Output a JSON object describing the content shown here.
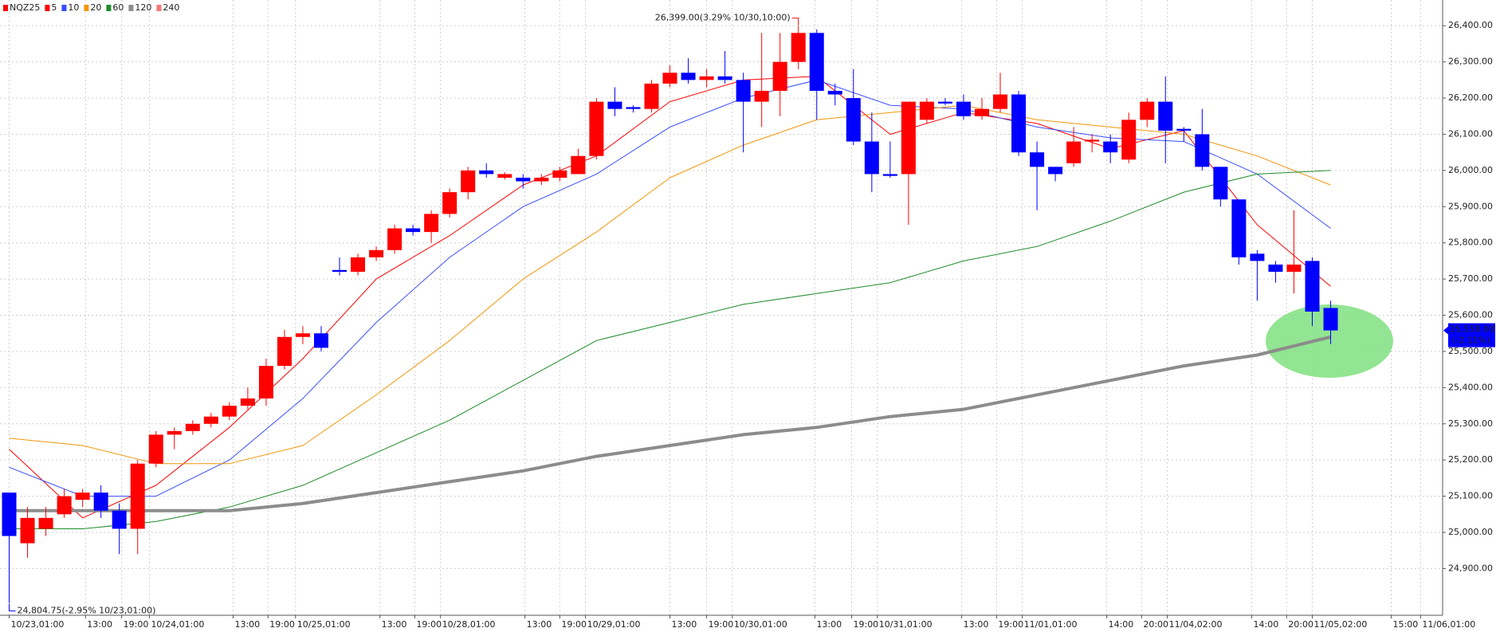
{
  "chart_data": {
    "type": "candlestick",
    "symbol": "NQZ25",
    "symbol_color": "#ff0000",
    "up_color": "#ff0000",
    "down_color": "#0000ff",
    "candles": {
      "open": [
        25110,
        24970,
        25010,
        25050,
        25090,
        25110,
        25060,
        25010,
        25190,
        25270,
        25280,
        25300,
        25320,
        25350,
        25370,
        25460,
        25540,
        25550,
        25725,
        25720,
        25760,
        25780,
        25840,
        25830,
        25880,
        25940,
        26000,
        25980,
        25980,
        25970,
        25980,
        25990,
        26040,
        26190,
        26175,
        26170,
        26240,
        26270,
        26250,
        26260,
        26250,
        26190,
        26220,
        26300,
        26380,
        26220,
        26200,
        26080,
        25990,
        25990,
        26140,
        26190,
        26190,
        26150,
        26170,
        26210,
        26050,
        26010,
        26020,
        26080,
        26080,
        26030,
        26140,
        26190,
        26115,
        26100,
        26010,
        25920,
        25770,
        25740,
        25720,
        25750,
        25620
      ],
      "high": [
        25110,
        25070,
        25070,
        25120,
        25120,
        25130,
        25080,
        25200,
        25280,
        25290,
        25310,
        25330,
        25360,
        25400,
        25480,
        25560,
        25570,
        25570,
        25760,
        25770,
        25790,
        25850,
        25850,
        25890,
        25950,
        26010,
        26020,
        25995,
        25990,
        25990,
        26010,
        26060,
        26200,
        26230,
        26180,
        26250,
        26290,
        26310,
        26280,
        26330,
        26270,
        26380,
        26380,
        26399,
        26390,
        26240,
        26280,
        26160,
        26080,
        26190,
        26200,
        26200,
        26210,
        26200,
        26270,
        26220,
        26080,
        26010,
        26120,
        26100,
        26100,
        26160,
        26200,
        26260,
        26120,
        26170,
        26010,
        25920,
        25780,
        25750,
        25890,
        25760,
        25640
      ],
      "low": [
        24804.75,
        24930,
        24990,
        25040,
        25070,
        25040,
        24940,
        24940,
        25180,
        25230,
        25270,
        25290,
        25310,
        25340,
        25350,
        25450,
        25520,
        25500,
        25710,
        25710,
        25750,
        25770,
        25820,
        25800,
        25870,
        25920,
        25980,
        25975,
        25950,
        25960,
        25970,
        25990,
        26030,
        26150,
        26160,
        26160,
        26230,
        26240,
        26230,
        26240,
        26050,
        26120,
        26150,
        26280,
        26140,
        26180,
        26070,
        25940,
        25980,
        25850,
        26130,
        26180,
        26140,
        26140,
        26160,
        26040,
        25890,
        25970,
        26010,
        26050,
        26020,
        26020,
        26120,
        26020,
        26080,
        26000,
        25900,
        25740,
        25640,
        25690,
        25660,
        25570,
        25520
      ],
      "close": [
        24990,
        25040,
        25040,
        25100,
        25110,
        25060,
        25010,
        25190,
        25270,
        25280,
        25300,
        25320,
        25350,
        25370,
        25460,
        25540,
        25550,
        25510,
        25720,
        25760,
        25780,
        25840,
        25830,
        25880,
        25940,
        26000,
        25990,
        25990,
        25970,
        25980,
        26000,
        26040,
        26190,
        26170,
        26170,
        26240,
        26270,
        26250,
        26260,
        26250,
        26190,
        26220,
        26300,
        26380,
        26220,
        26210,
        26080,
        25990,
        25985,
        26190,
        26190,
        26185,
        26150,
        26170,
        26210,
        26050,
        26010,
        25990,
        26080,
        26085,
        26050,
        26140,
        26190,
        26110,
        26110,
        26010,
        25920,
        25760,
        25750,
        25720,
        25740,
        25610,
        25558
      ]
    },
    "series": [
      {
        "name": "5",
        "color": "#ff0000",
        "width": 1,
        "x": [
          0,
          4,
          8,
          12,
          16,
          20,
          24,
          28,
          32,
          36,
          40,
          44,
          48,
          52,
          56,
          60,
          64,
          68,
          72
        ],
        "values": [
          25230,
          25040,
          25130,
          25290,
          25480,
          25700,
          25820,
          25960,
          26040,
          26190,
          26250,
          26260,
          26100,
          26160,
          26130,
          26060,
          26110,
          25850,
          25680
        ]
      },
      {
        "name": "10",
        "color": "#3a4cff",
        "width": 1,
        "x": [
          0,
          4,
          8,
          12,
          16,
          20,
          24,
          28,
          32,
          36,
          40,
          44,
          48,
          52,
          56,
          60,
          64,
          68,
          72
        ],
        "values": [
          25180,
          25100,
          25100,
          25200,
          25370,
          25580,
          25760,
          25900,
          25990,
          26120,
          26200,
          26250,
          26180,
          26170,
          26120,
          26090,
          26080,
          25990,
          25840
        ]
      },
      {
        "name": "20",
        "color": "#f0960a",
        "width": 1,
        "x": [
          0,
          4,
          8,
          12,
          16,
          20,
          24,
          28,
          32,
          36,
          40,
          44,
          48,
          52,
          56,
          60,
          64,
          68,
          72
        ],
        "values": [
          25260,
          25240,
          25190,
          25190,
          25240,
          25380,
          25530,
          25700,
          25830,
          25980,
          26070,
          26140,
          26160,
          26180,
          26140,
          26120,
          26100,
          26040,
          25960
        ]
      },
      {
        "name": "60",
        "color": "#1e8c2a",
        "width": 1,
        "x": [
          0,
          4,
          8,
          12,
          16,
          20,
          24,
          28,
          32,
          36,
          40,
          44,
          48,
          52,
          56,
          60,
          64,
          68,
          72
        ],
        "values": [
          25010,
          25010,
          25030,
          25070,
          25130,
          25220,
          25310,
          25420,
          25530,
          25580,
          25630,
          25660,
          25690,
          25750,
          25790,
          25860,
          25940,
          25990,
          26000
        ]
      },
      {
        "name": "120",
        "color": "#8c8c8c",
        "width": 4,
        "x": [
          0,
          4,
          8,
          12,
          16,
          20,
          24,
          28,
          32,
          36,
          40,
          44,
          48,
          52,
          56,
          60,
          64,
          68,
          72
        ],
        "values": [
          25060,
          25060,
          25060,
          25060,
          25080,
          25110,
          25140,
          25170,
          25210,
          25240,
          25270,
          25290,
          25320,
          25340,
          25380,
          25420,
          25460,
          25490,
          25540
        ]
      },
      {
        "name": "240",
        "color": "#f07878",
        "width": 1,
        "x": [],
        "values": []
      }
    ],
    "xlim": [
      -0.5,
      78.1
    ],
    "ylim": [
      24771,
      26471
    ],
    "grid": true,
    "yticks": [
      {
        "value": 24900,
        "label": "24,900.00"
      },
      {
        "value": 25000,
        "label": "25,000.00"
      },
      {
        "value": 25100,
        "label": "25,100.00"
      },
      {
        "value": 25200,
        "label": "25,200.00"
      },
      {
        "value": 25300,
        "label": "25,300.00"
      },
      {
        "value": 25400,
        "label": "25,400.00"
      },
      {
        "value": 25500,
        "label": "25,500.00"
      },
      {
        "value": 25600,
        "label": "25,600.00"
      },
      {
        "value": 25700,
        "label": "25,700.00"
      },
      {
        "value": 25800,
        "label": "25,800.00"
      },
      {
        "value": 25900,
        "label": "25,900.00"
      },
      {
        "value": 26000,
        "label": "26,000.00"
      },
      {
        "value": 26100,
        "label": "26,100.00"
      },
      {
        "value": 26200,
        "label": "26,200.00"
      },
      {
        "value": 26300,
        "label": "26,300.00"
      },
      {
        "value": 26400,
        "label": "26,400.00"
      }
    ],
    "xticks": [
      {
        "value": 0,
        "label": "10/23,01:00"
      },
      {
        "value": 4.16,
        "label": "13:00"
      },
      {
        "value": 6.13,
        "label": "19:00"
      },
      {
        "value": 7.64,
        "label": "10/24,01:00"
      },
      {
        "value": 12.2,
        "label": "13:00"
      },
      {
        "value": 14.1,
        "label": "19:00"
      },
      {
        "value": 15.6,
        "label": "10/25,01:00"
      },
      {
        "value": 20.2,
        "label": "13:00"
      },
      {
        "value": 22.1,
        "label": "19:00"
      },
      {
        "value": 23.5,
        "label": "10/28,01:00"
      },
      {
        "value": 28.1,
        "label": "13:00"
      },
      {
        "value": 30.0,
        "label": "19:00"
      },
      {
        "value": 31.4,
        "label": "10/29,01:00"
      },
      {
        "value": 36.0,
        "label": "13:00"
      },
      {
        "value": 38.0,
        "label": "19:00"
      },
      {
        "value": 39.4,
        "label": "10/30,01:00"
      },
      {
        "value": 43.9,
        "label": "13:00"
      },
      {
        "value": 45.9,
        "label": "19:00"
      },
      {
        "value": 47.3,
        "label": "10/31,01:00"
      },
      {
        "value": 51.9,
        "label": "13:00"
      },
      {
        "value": 53.8,
        "label": "19:00"
      },
      {
        "value": 55.2,
        "label": "11/01,01:00"
      },
      {
        "value": 59.8,
        "label": "14:00"
      },
      {
        "value": 61.7,
        "label": "20:00"
      },
      {
        "value": 63.1,
        "label": "11/04,02:00"
      },
      {
        "value": 67.7,
        "label": "14:00"
      },
      {
        "value": 69.6,
        "label": "20:00"
      },
      {
        "value": 71.0,
        "label": "11/05,02:00"
      },
      {
        "value": 75.3,
        "label": "15:00"
      },
      {
        "value": 76.9,
        "label": "11/06,01:00"
      }
    ],
    "annotations": [
      {
        "text": "26,399.00(3.29% 10/30,10:00)",
        "value": 26399,
        "index": 43,
        "color": "#ff0000",
        "side": "above"
      },
      {
        "text": "24,804.75(-2.95% 10/23,01:00)",
        "value": 24804.75,
        "index": 0,
        "color": "#0000ff",
        "side": "below"
      }
    ],
    "last_price": {
      "value": 25558,
      "label": "25,558.00",
      "change": "(-2.11%)",
      "color": "#0000ff"
    }
  }
}
